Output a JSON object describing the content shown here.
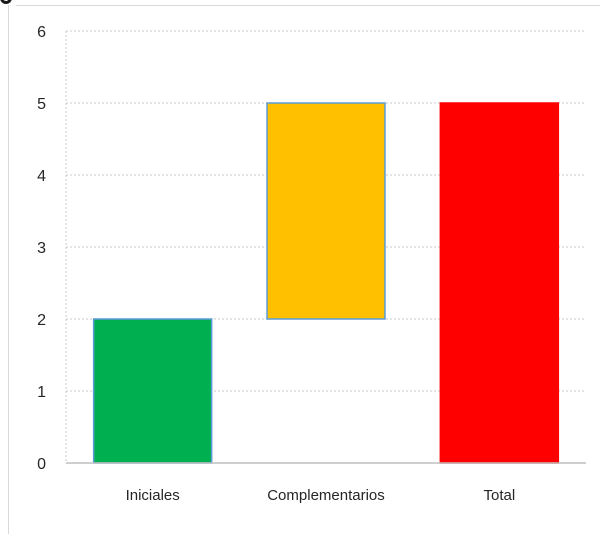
{
  "chart_data": {
    "type": "bar",
    "subtype": "floating",
    "title": "",
    "xlabel": "",
    "ylabel": "",
    "ylim": [
      0,
      6
    ],
    "y_ticks": [
      "0",
      "1",
      "2",
      "3",
      "4",
      "5",
      "6"
    ],
    "grid": true,
    "legend": "none",
    "categories": [
      "Iniciales",
      "Complementarios",
      "Total"
    ],
    "bars": [
      {
        "category": "Iniciales",
        "start": 0,
        "end": 2,
        "color": "#00b050",
        "border": "#5b9bd5"
      },
      {
        "category": "Complementarios",
        "start": 2,
        "end": 5,
        "color": "#ffc000",
        "border": "#5b9bd5"
      },
      {
        "category": "Total",
        "start": 0,
        "end": 5,
        "color": "#ff0000",
        "border": "#ff0000"
      }
    ],
    "colors": {
      "grid": "#c9c9c9",
      "axis": "#bfbfbf",
      "text": "#262626"
    }
  }
}
